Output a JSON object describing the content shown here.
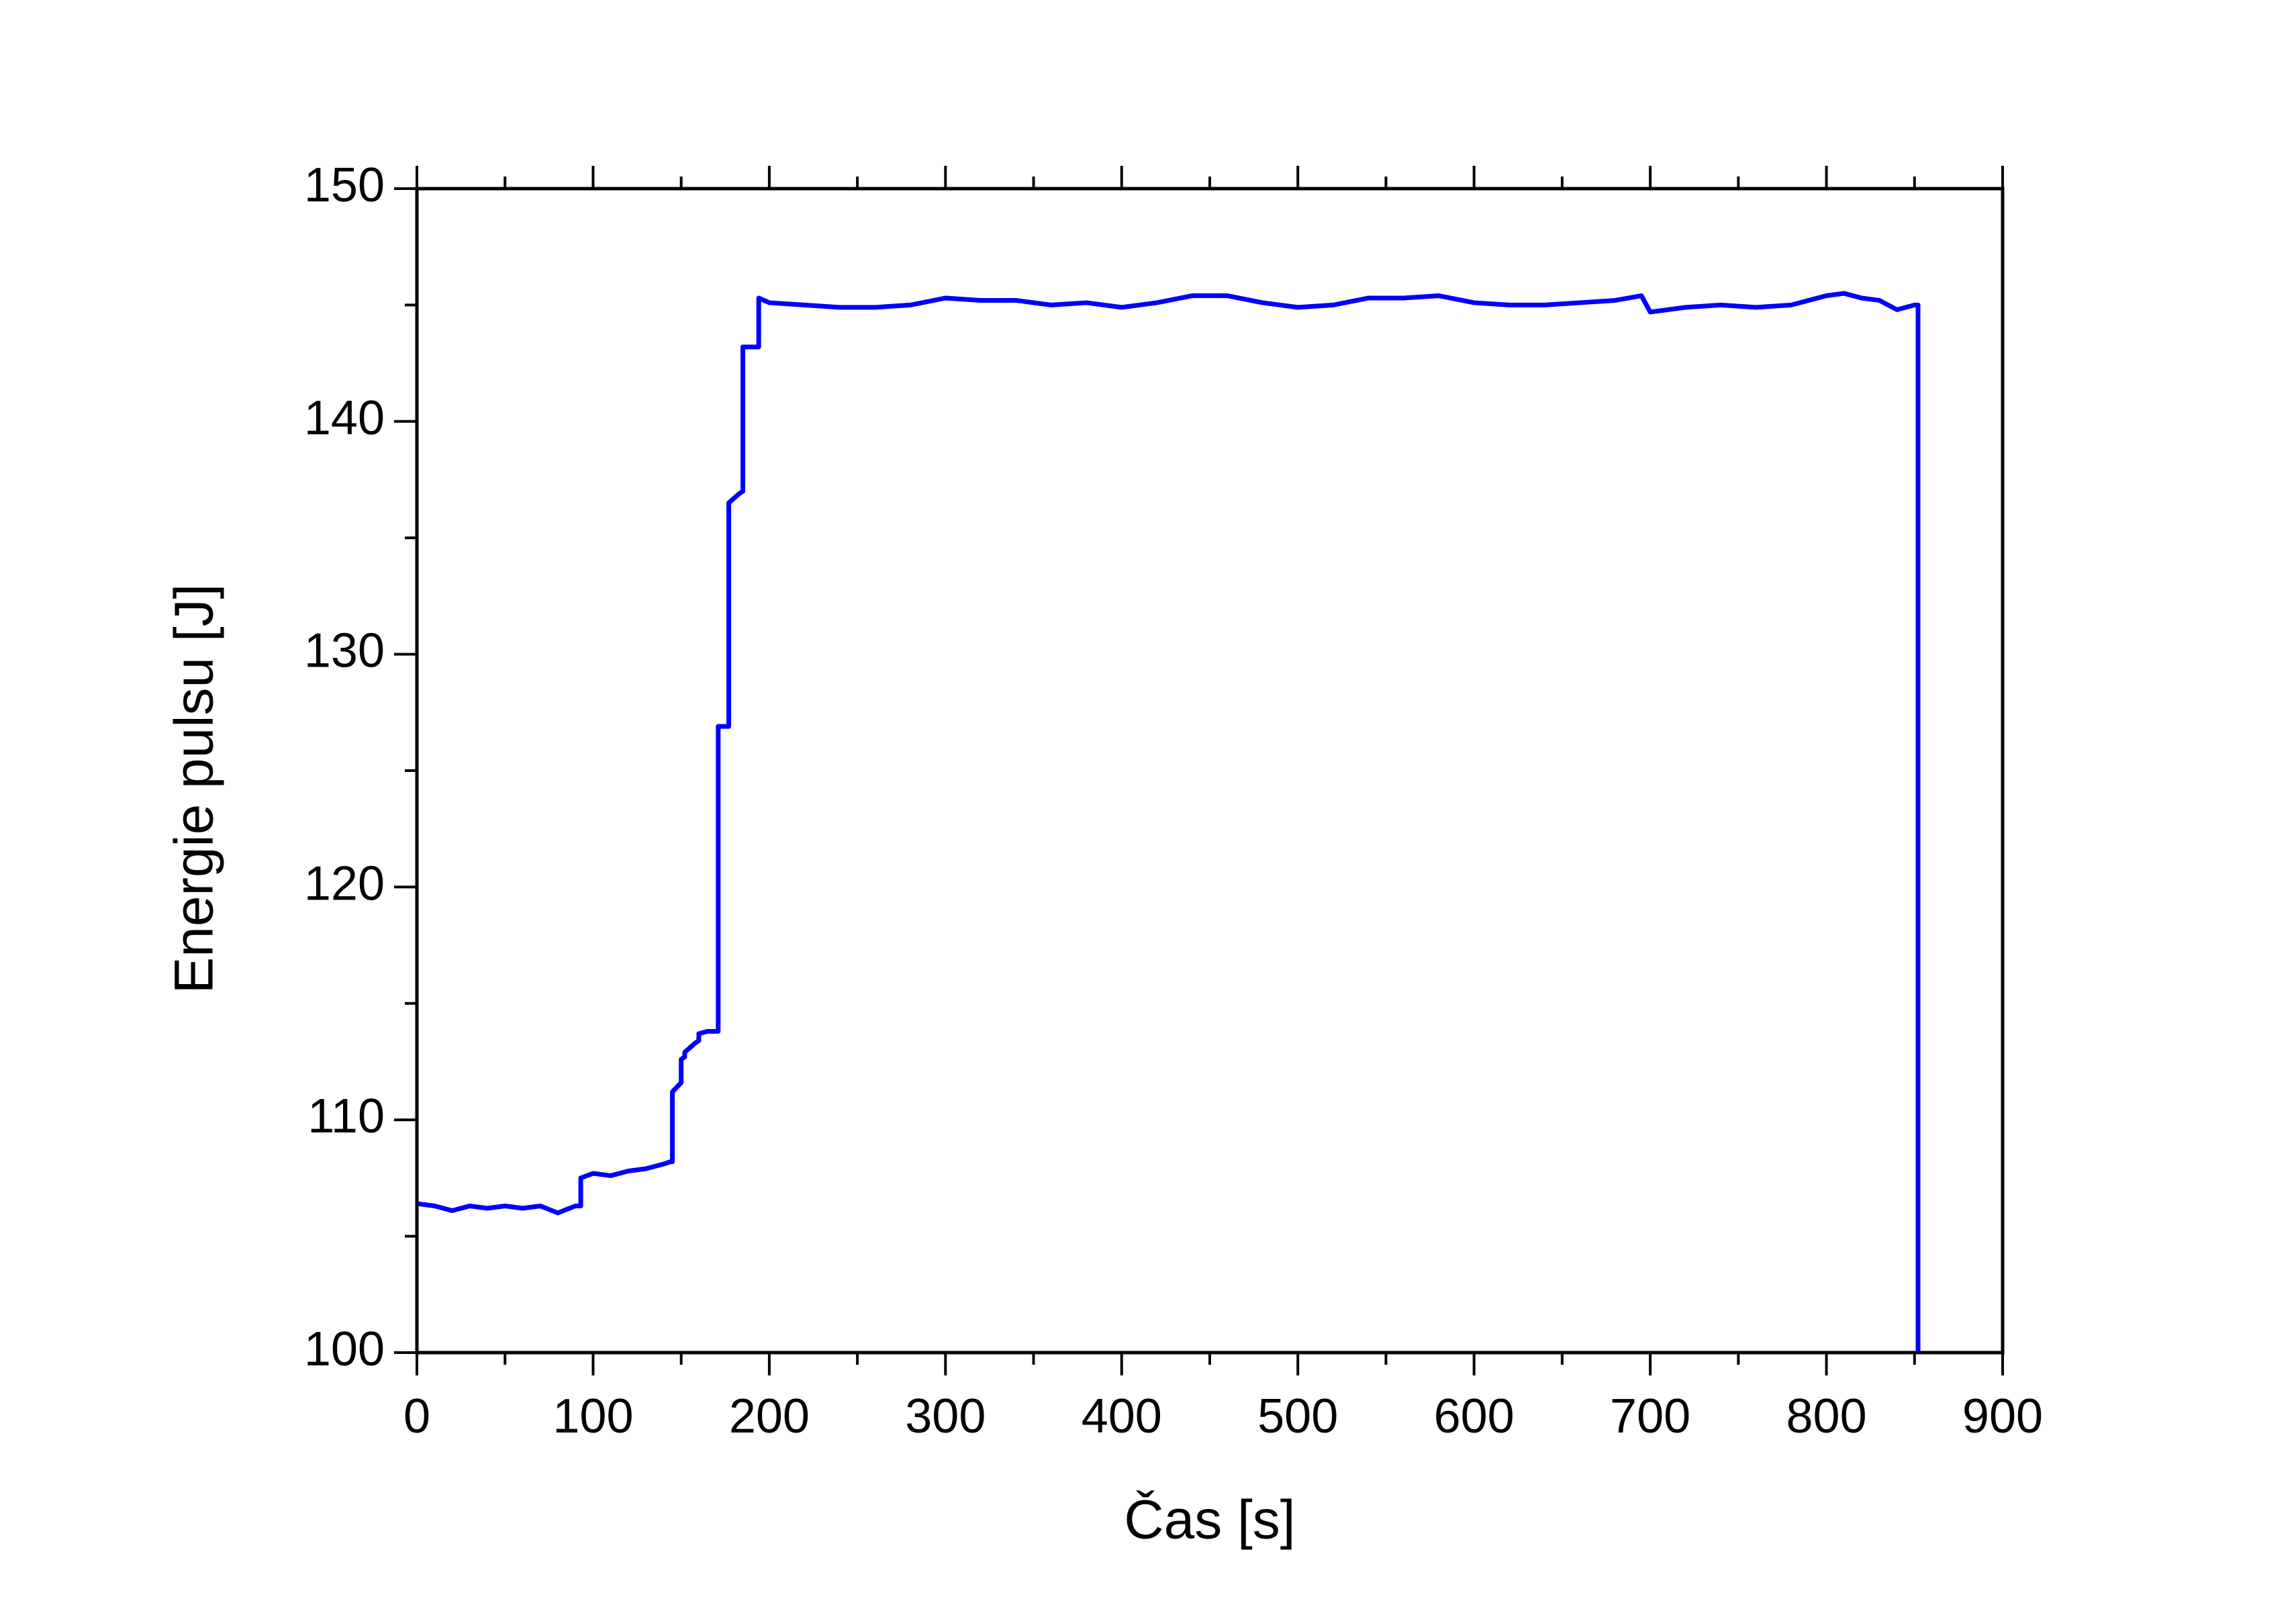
{
  "chart_data": {
    "type": "line",
    "x_label": "Čas [s]",
    "y_label": "Energie pulsu [J]",
    "x": [
      0,
      10,
      20,
      30,
      40,
      50,
      60,
      70,
      80,
      90,
      93,
      93,
      100,
      110,
      120,
      130,
      140,
      144,
      145,
      145,
      150,
      150,
      152,
      152,
      158,
      160,
      160,
      165,
      170,
      171,
      171,
      176,
      177,
      177,
      183,
      185,
      185,
      192,
      194,
      194,
      200,
      220,
      240,
      260,
      280,
      300,
      320,
      340,
      360,
      380,
      400,
      420,
      440,
      460,
      480,
      500,
      520,
      540,
      560,
      580,
      600,
      620,
      640,
      660,
      680,
      695,
      700,
      720,
      740,
      760,
      780,
      800,
      810,
      820,
      830,
      840,
      850,
      852,
      852
    ],
    "series": [
      {
        "color": "#0000ff",
        "values": [
          106.4,
          106.3,
          106.1,
          106.3,
          106.2,
          106.3,
          106.2,
          106.3,
          106.0,
          106.3,
          106.3,
          107.5,
          107.7,
          107.6,
          107.8,
          107.9,
          108.1,
          108.2,
          108.2,
          111.2,
          111.6,
          112.6,
          112.7,
          112.9,
          113.3,
          113.4,
          113.7,
          113.8,
          113.8,
          113.8,
          126.9,
          126.9,
          126.9,
          136.5,
          136.9,
          137.0,
          143.2,
          143.2,
          143.2,
          145.3,
          145.1,
          145.0,
          144.9,
          144.9,
          145.0,
          145.3,
          145.2,
          145.2,
          145.0,
          145.1,
          144.9,
          145.1,
          145.4,
          145.4,
          145.1,
          144.9,
          145.0,
          145.3,
          145.3,
          145.4,
          145.1,
          145.0,
          145.0,
          145.1,
          145.2,
          145.4,
          144.7,
          144.9,
          145.0,
          144.9,
          145.0,
          145.4,
          145.5,
          145.3,
          145.2,
          144.8,
          145.0,
          145.0,
          100
        ]
      }
    ],
    "xlim": [
      0,
      900
    ],
    "xticks": [
      0,
      100,
      200,
      300,
      400,
      500,
      600,
      700,
      800,
      900
    ],
    "xminorticks": [
      50,
      150,
      250,
      350,
      450,
      550,
      650,
      750,
      850
    ],
    "ylim": [
      100,
      150
    ],
    "yticks": [
      100,
      110,
      120,
      130,
      140,
      150
    ],
    "yminorticks": [
      105,
      115,
      125,
      135,
      145
    ]
  }
}
